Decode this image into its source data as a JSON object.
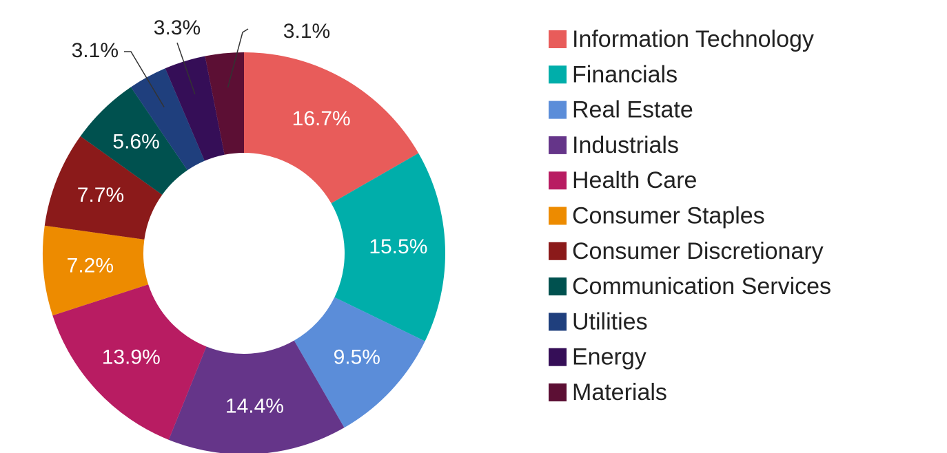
{
  "chart_data": {
    "type": "donut",
    "categories": [
      "Information Technology",
      "Financials",
      "Real Estate",
      "Industrials",
      "Health Care",
      "Consumer Staples",
      "Consumer Discretionary",
      "Communication Services",
      "Utilities",
      "Energy",
      "Materials"
    ],
    "values": [
      16.7,
      15.5,
      9.5,
      14.4,
      13.9,
      7.2,
      7.7,
      5.6,
      3.1,
      3.3,
      3.1
    ],
    "value_labels": [
      "16.7%",
      "15.5%",
      "9.5%",
      "14.4%",
      "13.9%",
      "7.2%",
      "7.7%",
      "5.6%",
      "3.1%",
      "3.3%",
      "3.1%"
    ],
    "colors": [
      "#e85c5a",
      "#00aeaa",
      "#5b8dd9",
      "#653589",
      "#b81c62",
      "#ed8b00",
      "#8b1a1a",
      "#00514f",
      "#1f3f7d",
      "#350e57",
      "#5c0f34"
    ],
    "legend": "right"
  }
}
